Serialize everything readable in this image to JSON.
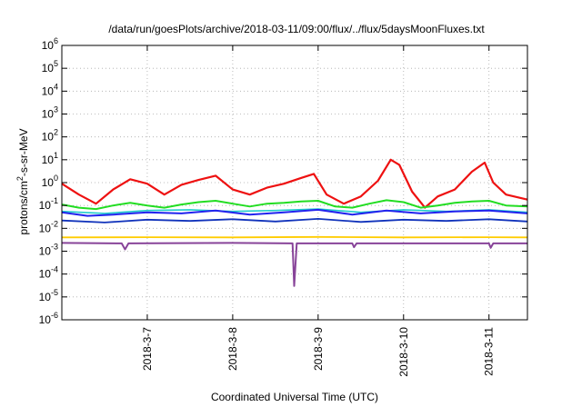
{
  "chart_data": {
    "type": "line",
    "title": "/data/run/goesPlots/archive/2018-03-11/09:00/flux/../flux/5daysMoonFluxes.txt",
    "xlabel": "Coordinated Universal Time (UTC)",
    "ylabel_base": "protons/cm",
    "ylabel_sup": "2",
    "ylabel_rest": "-s-sr-MeV",
    "yscale": "log",
    "ylim_exp": [
      -6,
      6
    ],
    "y_ticks": [
      {
        "base": "10",
        "exp": "-6",
        "e": -6
      },
      {
        "base": "10",
        "exp": "-5",
        "e": -5
      },
      {
        "base": "10",
        "exp": "-4",
        "e": -4
      },
      {
        "base": "10",
        "exp": "-3",
        "e": -3
      },
      {
        "base": "10",
        "exp": "-2",
        "e": -2
      },
      {
        "base": "10",
        "exp": "-1",
        "e": -1
      },
      {
        "base": "10",
        "exp": "0",
        "e": 0
      },
      {
        "base": "10",
        "exp": "1",
        "e": 1
      },
      {
        "base": "10",
        "exp": "2",
        "e": 2
      },
      {
        "base": "10",
        "exp": "3",
        "e": 3
      },
      {
        "base": "10",
        "exp": "4",
        "e": 4
      },
      {
        "base": "10",
        "exp": "5",
        "e": 5
      },
      {
        "base": "10",
        "exp": "6",
        "e": 6
      }
    ],
    "xlim_days": [
      6.0,
      11.45
    ],
    "x_ticks": [
      {
        "label": "2018-3-7",
        "day": 7
      },
      {
        "label": "2018-3-8",
        "day": 8
      },
      {
        "label": "2018-3-9",
        "day": 9
      },
      {
        "label": "2018-3-10",
        "day": 10
      },
      {
        "label": "2018-3-11",
        "day": 11
      }
    ],
    "grid": true,
    "series": [
      {
        "color": "#ee1111",
        "width": 2.2,
        "points": [
          [
            6.0,
            0.9
          ],
          [
            6.2,
            0.3
          ],
          [
            6.4,
            0.12
          ],
          [
            6.6,
            0.5
          ],
          [
            6.8,
            1.4
          ],
          [
            7.0,
            0.9
          ],
          [
            7.2,
            0.3
          ],
          [
            7.4,
            0.8
          ],
          [
            7.6,
            1.3
          ],
          [
            7.8,
            2.0
          ],
          [
            8.0,
            0.5
          ],
          [
            8.2,
            0.3
          ],
          [
            8.4,
            0.6
          ],
          [
            8.6,
            0.9
          ],
          [
            8.8,
            1.6
          ],
          [
            8.95,
            2.4
          ],
          [
            9.1,
            0.3
          ],
          [
            9.3,
            0.12
          ],
          [
            9.5,
            0.25
          ],
          [
            9.7,
            1.2
          ],
          [
            9.85,
            10.0
          ],
          [
            9.95,
            6.0
          ],
          [
            10.1,
            0.4
          ],
          [
            10.25,
            0.08
          ],
          [
            10.4,
            0.25
          ],
          [
            10.6,
            0.5
          ],
          [
            10.8,
            3.0
          ],
          [
            10.95,
            7.5
          ],
          [
            11.05,
            1.0
          ],
          [
            11.2,
            0.3
          ],
          [
            11.45,
            0.18
          ]
        ]
      },
      {
        "color": "#22dd22",
        "width": 2.0,
        "points": [
          [
            6.0,
            0.11
          ],
          [
            6.2,
            0.08
          ],
          [
            6.4,
            0.07
          ],
          [
            6.6,
            0.1
          ],
          [
            6.8,
            0.13
          ],
          [
            7.0,
            0.1
          ],
          [
            7.2,
            0.08
          ],
          [
            7.4,
            0.11
          ],
          [
            7.6,
            0.14
          ],
          [
            7.8,
            0.16
          ],
          [
            8.0,
            0.12
          ],
          [
            8.2,
            0.09
          ],
          [
            8.4,
            0.12
          ],
          [
            8.6,
            0.13
          ],
          [
            8.8,
            0.15
          ],
          [
            9.0,
            0.16
          ],
          [
            9.2,
            0.09
          ],
          [
            9.4,
            0.08
          ],
          [
            9.6,
            0.12
          ],
          [
            9.8,
            0.17
          ],
          [
            10.0,
            0.14
          ],
          [
            10.2,
            0.08
          ],
          [
            10.4,
            0.1
          ],
          [
            10.6,
            0.13
          ],
          [
            10.8,
            0.15
          ],
          [
            11.0,
            0.16
          ],
          [
            11.2,
            0.1
          ],
          [
            11.45,
            0.09
          ]
        ]
      },
      {
        "color": "#22cccc",
        "width": 1.6,
        "points": [
          [
            6.0,
            0.055
          ],
          [
            6.5,
            0.045
          ],
          [
            7.0,
            0.06
          ],
          [
            7.5,
            0.065
          ],
          [
            8.0,
            0.055
          ],
          [
            8.5,
            0.06
          ],
          [
            9.0,
            0.07
          ],
          [
            9.5,
            0.05
          ],
          [
            10.0,
            0.065
          ],
          [
            10.5,
            0.055
          ],
          [
            11.0,
            0.065
          ],
          [
            11.45,
            0.05
          ]
        ]
      },
      {
        "color": "#2222ee",
        "width": 2.0,
        "points": [
          [
            6.0,
            0.05
          ],
          [
            6.3,
            0.035
          ],
          [
            6.6,
            0.04
          ],
          [
            7.0,
            0.05
          ],
          [
            7.4,
            0.045
          ],
          [
            7.8,
            0.06
          ],
          [
            8.2,
            0.04
          ],
          [
            8.6,
            0.05
          ],
          [
            9.0,
            0.065
          ],
          [
            9.4,
            0.04
          ],
          [
            9.8,
            0.06
          ],
          [
            10.2,
            0.045
          ],
          [
            10.6,
            0.055
          ],
          [
            11.0,
            0.06
          ],
          [
            11.45,
            0.045
          ]
        ]
      },
      {
        "color": "#1133bb",
        "width": 1.8,
        "points": [
          [
            6.0,
            0.022
          ],
          [
            6.5,
            0.018
          ],
          [
            7.0,
            0.024
          ],
          [
            7.5,
            0.021
          ],
          [
            8.0,
            0.025
          ],
          [
            8.5,
            0.02
          ],
          [
            9.0,
            0.026
          ],
          [
            9.5,
            0.019
          ],
          [
            10.0,
            0.024
          ],
          [
            10.5,
            0.021
          ],
          [
            11.0,
            0.025
          ],
          [
            11.45,
            0.02
          ]
        ]
      },
      {
        "color": "#ffcc00",
        "width": 1.8,
        "points": [
          [
            6.0,
            0.004
          ],
          [
            7.0,
            0.0041
          ],
          [
            8.0,
            0.004
          ],
          [
            9.0,
            0.0042
          ],
          [
            10.0,
            0.004
          ],
          [
            11.0,
            0.0041
          ],
          [
            11.45,
            0.004
          ]
        ]
      },
      {
        "color": "#884499",
        "width": 2.0,
        "points": [
          [
            6.0,
            0.0023
          ],
          [
            6.7,
            0.0022
          ],
          [
            6.74,
            0.0012
          ],
          [
            6.78,
            0.0022
          ],
          [
            8.0,
            0.0023
          ],
          [
            8.7,
            0.0022
          ],
          [
            8.72,
            3e-05
          ],
          [
            8.75,
            0.0022
          ],
          [
            9.4,
            0.0022
          ],
          [
            9.42,
            0.0015
          ],
          [
            9.45,
            0.0022
          ],
          [
            11.0,
            0.0022
          ],
          [
            11.02,
            0.0014
          ],
          [
            11.05,
            0.0022
          ],
          [
            11.45,
            0.0022
          ]
        ]
      }
    ]
  }
}
